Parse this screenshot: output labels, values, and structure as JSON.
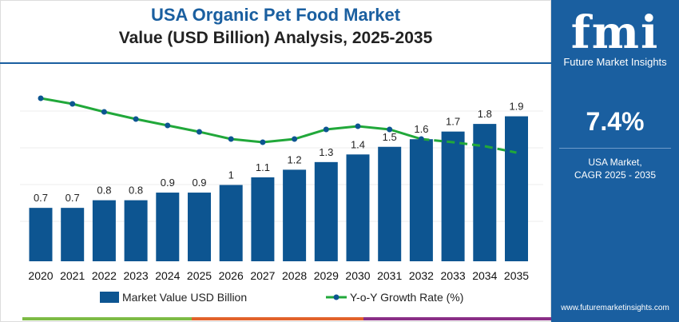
{
  "header": {
    "title": "USA Organic Pet Food Market",
    "subtitle": "Value (USD Billion) Analysis, 2025-2035"
  },
  "sidebar": {
    "logo": "fmi",
    "logo_text": "Future Market Insights",
    "cagr": "7.4%",
    "cagr_label1": "USA Market,",
    "cagr_label2": "CAGR 2025 - 2035",
    "url": "www.futuremarketinsights.com"
  },
  "colors": {
    "bar": "#0d5591",
    "line": "#21a83a",
    "dot": "#0d5591",
    "panel": "#1a5fa0"
  },
  "chart_data": {
    "type": "bar",
    "categories": [
      "2020",
      "2021",
      "2022",
      "2023",
      "2024",
      "2025",
      "2026",
      "2027",
      "2028",
      "2029",
      "2030",
      "2031",
      "2032",
      "2033",
      "2034",
      "2035"
    ],
    "series": [
      {
        "name": "Market Value USD Billion",
        "type": "bar",
        "values": [
          0.7,
          0.7,
          0.8,
          0.8,
          0.9,
          0.9,
          1.0,
          1.1,
          1.2,
          1.3,
          1.4,
          1.5,
          1.6,
          1.7,
          1.8,
          1.9
        ]
      },
      {
        "name": "Y-o-Y Growth Rate (%)",
        "type": "line",
        "values": [
          12.7,
          12.0,
          11.0,
          10.1,
          9.3,
          8.5,
          7.6,
          7.2,
          7.6,
          8.8,
          9.2,
          8.8,
          7.6,
          7.2,
          6.7,
          5.9
        ],
        "dashed_from": "2032"
      }
    ],
    "ylim": [
      0,
      2.2
    ],
    "grid": true,
    "legend": "bottom"
  }
}
